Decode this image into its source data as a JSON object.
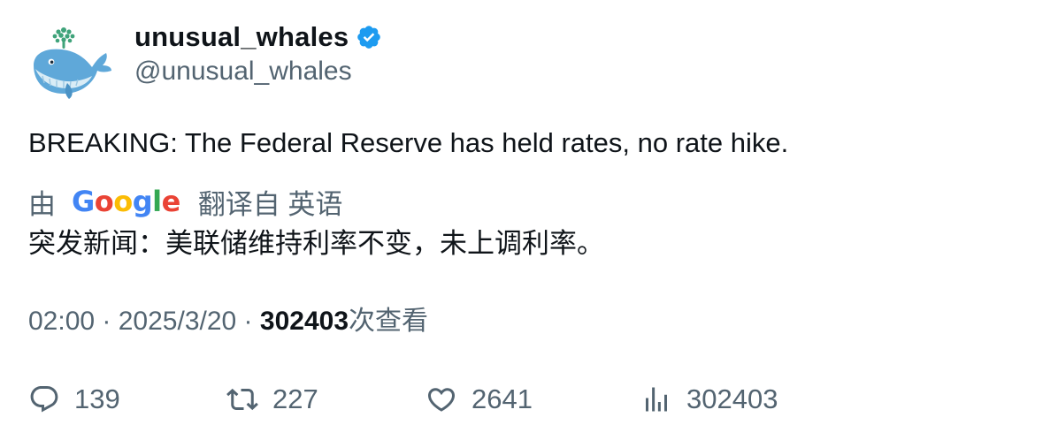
{
  "author": {
    "display_name": "unusual_whales",
    "handle": "@unusual_whales",
    "verified_icon": "verified-badge-icon",
    "avatar_icon": "whale-avatar-icon",
    "verified_color": "#1d9bf0"
  },
  "tweet": {
    "text": "BREAKING: The Federal Reserve has held rates, no rate hike."
  },
  "translation": {
    "by_label": "由",
    "logo_letters": [
      "G",
      "o",
      "o",
      "g",
      "l",
      "e"
    ],
    "from_label": "翻译自 英语",
    "translated_text": "突发新闻：美联储维持利率不变，未上调利率。"
  },
  "meta": {
    "time": "02:00",
    "separator": " · ",
    "date": "2025/3/20",
    "views_count": "302403",
    "views_label": "次查看"
  },
  "actions": {
    "replies": "139",
    "retweets": "227",
    "likes": "2641",
    "views": "302403"
  },
  "colors": {
    "text": "#0f1419",
    "secondary": "#536471",
    "google_blue": "#4285F4",
    "google_red": "#EA4335",
    "google_yellow": "#FBBC05",
    "google_green": "#34A853"
  }
}
